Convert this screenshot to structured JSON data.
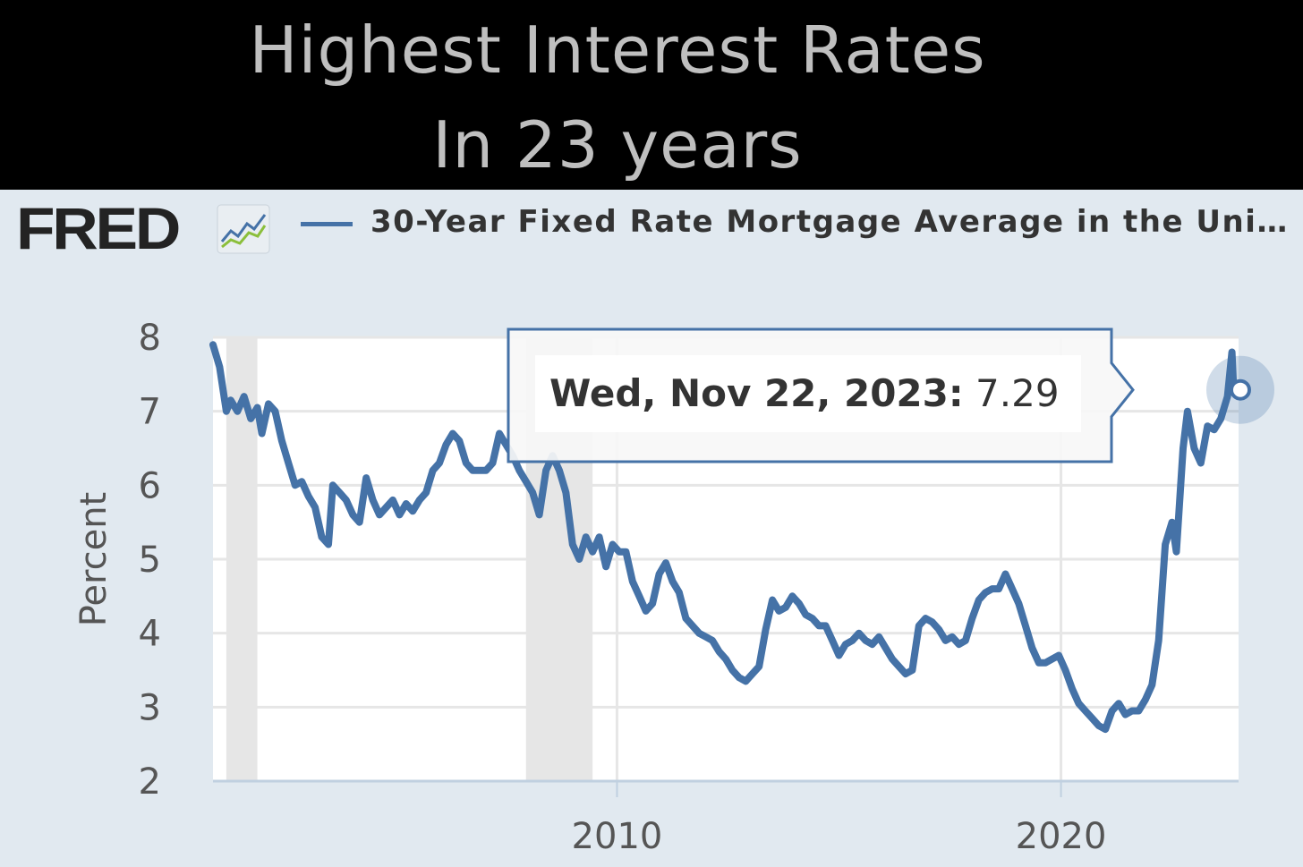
{
  "headline": {
    "line1": "Highest Interest Rates",
    "line2": "In 23 years"
  },
  "header": {
    "logo_text": "FRED",
    "series_title": "30-Year Fixed Rate Mortgage Average in the Uni…"
  },
  "tooltip": {
    "date": "Wed, Nov 22, 2023:",
    "value": "7.29"
  },
  "colors": {
    "series": "#4572a7",
    "recession": "#e6e6e6",
    "panel": "#e1e9f0"
  },
  "chart_data": {
    "type": "line",
    "title": "30-Year Fixed Rate Mortgage Average in the Uni…",
    "ylabel": "Percent",
    "xlabel": "",
    "ylim": [
      2,
      8
    ],
    "xlim": [
      2000.9,
      2024.0
    ],
    "y_ticks": [
      2,
      3,
      4,
      5,
      6,
      7,
      8
    ],
    "x_ticks": [
      2010,
      2020
    ],
    "grid": true,
    "legend": "top",
    "recessions": [
      [
        2001.2,
        2001.9
      ],
      [
        2007.95,
        2009.45
      ]
    ],
    "series": [
      {
        "name": "30-Year Fixed Rate Mortgage Average in the Uni…",
        "x": [
          2000.9,
          2001.05,
          2001.2,
          2001.3,
          2001.45,
          2001.6,
          2001.75,
          2001.9,
          2002.0,
          2002.15,
          2002.3,
          2002.45,
          2002.6,
          2002.75,
          2002.9,
          2003.05,
          2003.2,
          2003.35,
          2003.5,
          2003.6,
          2003.75,
          2003.9,
          2004.05,
          2004.2,
          2004.35,
          2004.5,
          2004.65,
          2004.8,
          2004.95,
          2005.1,
          2005.25,
          2005.4,
          2005.55,
          2005.7,
          2005.85,
          2006.0,
          2006.15,
          2006.3,
          2006.45,
          2006.6,
          2006.75,
          2006.9,
          2007.05,
          2007.2,
          2007.35,
          2007.5,
          2007.65,
          2007.8,
          2007.95,
          2008.1,
          2008.25,
          2008.4,
          2008.55,
          2008.7,
          2008.85,
          2009.0,
          2009.15,
          2009.3,
          2009.45,
          2009.6,
          2009.75,
          2009.9,
          2010.05,
          2010.2,
          2010.35,
          2010.5,
          2010.65,
          2010.8,
          2010.95,
          2011.1,
          2011.25,
          2011.4,
          2011.55,
          2011.7,
          2011.85,
          2012.0,
          2012.15,
          2012.3,
          2012.45,
          2012.6,
          2012.75,
          2012.9,
          2013.05,
          2013.2,
          2013.35,
          2013.5,
          2013.65,
          2013.8,
          2013.95,
          2014.1,
          2014.25,
          2014.4,
          2014.55,
          2014.7,
          2014.85,
          2015.0,
          2015.15,
          2015.3,
          2015.45,
          2015.6,
          2015.75,
          2015.9,
          2016.05,
          2016.2,
          2016.35,
          2016.5,
          2016.65,
          2016.8,
          2016.95,
          2017.1,
          2017.25,
          2017.4,
          2017.55,
          2017.7,
          2017.85,
          2018.0,
          2018.15,
          2018.3,
          2018.45,
          2018.6,
          2018.75,
          2018.9,
          2019.05,
          2019.2,
          2019.35,
          2019.5,
          2019.65,
          2019.8,
          2019.95,
          2020.1,
          2020.25,
          2020.4,
          2020.55,
          2020.7,
          2020.85,
          2021.0,
          2021.15,
          2021.3,
          2021.45,
          2021.6,
          2021.75,
          2021.9,
          2022.05,
          2022.2,
          2022.35,
          2022.5,
          2022.6,
          2022.75,
          2022.85,
          2023.0,
          2023.15,
          2023.3,
          2023.45,
          2023.6,
          2023.75,
          2023.85,
          2023.89
        ],
        "y": [
          7.9,
          7.6,
          7.0,
          7.15,
          7.0,
          7.2,
          6.9,
          7.05,
          6.7,
          7.1,
          7.0,
          6.6,
          6.3,
          6.0,
          6.05,
          5.85,
          5.7,
          5.3,
          5.2,
          6.0,
          5.9,
          5.8,
          5.6,
          5.5,
          6.1,
          5.8,
          5.6,
          5.7,
          5.8,
          5.6,
          5.75,
          5.65,
          5.8,
          5.9,
          6.2,
          6.3,
          6.55,
          6.7,
          6.6,
          6.3,
          6.2,
          6.2,
          6.2,
          6.3,
          6.7,
          6.55,
          6.4,
          6.2,
          6.05,
          5.9,
          5.6,
          6.2,
          6.4,
          6.2,
          5.9,
          5.2,
          5.0,
          5.3,
          5.1,
          5.3,
          4.9,
          5.2,
          5.1,
          5.1,
          4.7,
          4.5,
          4.3,
          4.4,
          4.8,
          4.95,
          4.7,
          4.55,
          4.2,
          4.1,
          4.0,
          3.95,
          3.9,
          3.75,
          3.65,
          3.5,
          3.4,
          3.35,
          3.45,
          3.55,
          4.05,
          4.45,
          4.3,
          4.35,
          4.5,
          4.4,
          4.25,
          4.2,
          4.1,
          4.1,
          3.9,
          3.7,
          3.85,
          3.9,
          4.0,
          3.9,
          3.85,
          3.95,
          3.8,
          3.65,
          3.55,
          3.45,
          3.5,
          4.1,
          4.2,
          4.15,
          4.05,
          3.9,
          3.95,
          3.85,
          3.9,
          4.2,
          4.45,
          4.55,
          4.6,
          4.6,
          4.8,
          4.6,
          4.4,
          4.1,
          3.8,
          3.6,
          3.6,
          3.65,
          3.7,
          3.5,
          3.25,
          3.05,
          2.95,
          2.85,
          2.75,
          2.7,
          2.95,
          3.05,
          2.9,
          2.95,
          2.95,
          3.1,
          3.3,
          3.9,
          5.2,
          5.5,
          5.1,
          6.5,
          7.0,
          6.5,
          6.3,
          6.8,
          6.75,
          6.9,
          7.2,
          7.8,
          7.29
        ]
      }
    ],
    "highlight_point": {
      "x": 2023.89,
      "y": 7.29
    }
  }
}
